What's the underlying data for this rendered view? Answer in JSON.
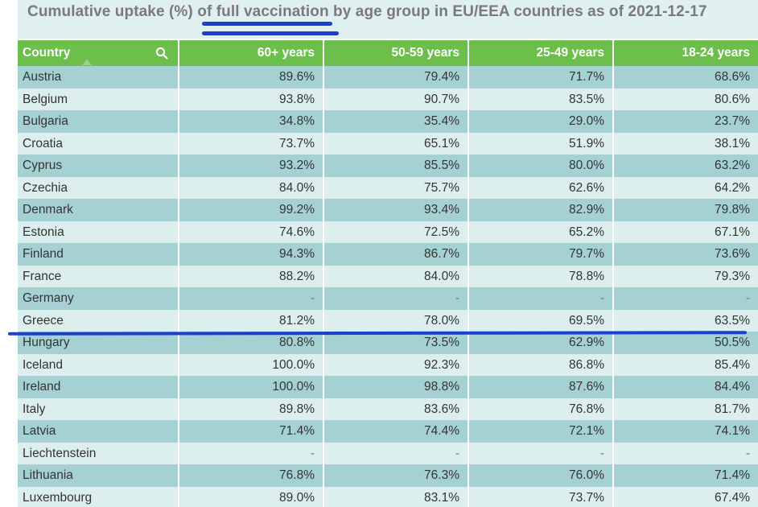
{
  "title": "Cumulative uptake (%) of full vaccination by age group in EU/EEA countries as of 2021-12-17",
  "colors": {
    "header_green": "#6cbf4a",
    "row_dark": "#a6d1d3",
    "row_light": "#dceeee",
    "annotation_blue": "#1a3fd1"
  },
  "table": {
    "headers": [
      "Country",
      "60+ years",
      "50-59 years",
      "25-49 years",
      "18-24 years"
    ],
    "search_icon": "search-icon",
    "rows": [
      [
        "Austria",
        "89.6%",
        "79.4%",
        "71.7%",
        "68.6%"
      ],
      [
        "Belgium",
        "93.8%",
        "90.7%",
        "83.5%",
        "80.6%"
      ],
      [
        "Bulgaria",
        "34.8%",
        "35.4%",
        "29.0%",
        "23.7%"
      ],
      [
        "Croatia",
        "73.7%",
        "65.1%",
        "51.9%",
        "38.1%"
      ],
      [
        "Cyprus",
        "93.2%",
        "85.5%",
        "80.0%",
        "63.2%"
      ],
      [
        "Czechia",
        "84.0%",
        "75.7%",
        "62.6%",
        "64.2%"
      ],
      [
        "Denmark",
        "99.2%",
        "93.4%",
        "82.9%",
        "79.8%"
      ],
      [
        "Estonia",
        "74.6%",
        "72.5%",
        "65.2%",
        "67.1%"
      ],
      [
        "Finland",
        "94.3%",
        "86.7%",
        "79.7%",
        "73.6%"
      ],
      [
        "France",
        "88.2%",
        "84.0%",
        "78.8%",
        "79.3%"
      ],
      [
        "Germany",
        "-",
        "-",
        "-",
        "-"
      ],
      [
        "Greece",
        "81.2%",
        "78.0%",
        "69.5%",
        "63.5%"
      ],
      [
        "Hungary",
        "80.8%",
        "73.5%",
        "62.9%",
        "50.5%"
      ],
      [
        "Iceland",
        "100.0%",
        "92.3%",
        "86.8%",
        "85.4%"
      ],
      [
        "Ireland",
        "100.0%",
        "98.8%",
        "87.6%",
        "84.4%"
      ],
      [
        "Italy",
        "89.8%",
        "83.6%",
        "76.8%",
        "81.7%"
      ],
      [
        "Latvia",
        "71.4%",
        "74.4%",
        "72.1%",
        "74.1%"
      ],
      [
        "Liechtenstein",
        "-",
        "-",
        "-",
        "-"
      ],
      [
        "Lithuania",
        "76.8%",
        "76.3%",
        "76.0%",
        "71.4%"
      ],
      [
        "Luxembourg",
        "89.0%",
        "83.1%",
        "73.7%",
        "67.4%"
      ]
    ]
  }
}
